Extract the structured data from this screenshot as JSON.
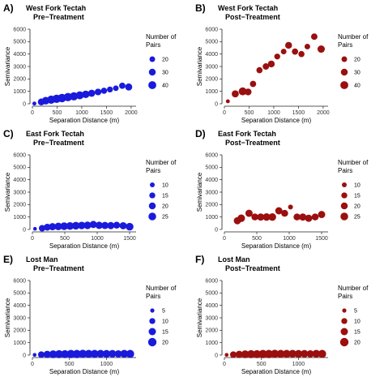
{
  "figure": {
    "legend_title_lines": [
      "Number of",
      "Pairs"
    ]
  },
  "chart_data": [
    {
      "type": "scatter",
      "panel": "A)",
      "title_lines": [
        "West Fork Tectah",
        "Pre−Treatment"
      ],
      "xlabel": "Separation Distance (m)",
      "ylabel": "Semivariance",
      "xlim": [
        0,
        2100
      ],
      "ylim": [
        0,
        6000
      ],
      "xticks": [
        0,
        500,
        1000,
        1500,
        2000
      ],
      "yticks": [
        0,
        1000,
        2000,
        3000,
        4000,
        5000,
        6000
      ],
      "color": "#1a1adc",
      "size_range": [
        10,
        45
      ],
      "legend": {
        "values": [
          20,
          30,
          40
        ]
      },
      "points": [
        {
          "x": 40,
          "y": 20,
          "n": 10
        },
        {
          "x": 180,
          "y": 150,
          "n": 30
        },
        {
          "x": 270,
          "y": 250,
          "n": 37
        },
        {
          "x": 380,
          "y": 330,
          "n": 42
        },
        {
          "x": 490,
          "y": 400,
          "n": 44
        },
        {
          "x": 600,
          "y": 460,
          "n": 45
        },
        {
          "x": 720,
          "y": 540,
          "n": 44
        },
        {
          "x": 840,
          "y": 600,
          "n": 43
        },
        {
          "x": 960,
          "y": 680,
          "n": 40
        },
        {
          "x": 1080,
          "y": 760,
          "n": 36
        },
        {
          "x": 1200,
          "y": 850,
          "n": 32
        },
        {
          "x": 1330,
          "y": 950,
          "n": 28
        },
        {
          "x": 1450,
          "y": 1050,
          "n": 24
        },
        {
          "x": 1570,
          "y": 1150,
          "n": 22
        },
        {
          "x": 1690,
          "y": 1250,
          "n": 20
        },
        {
          "x": 1820,
          "y": 1450,
          "n": 25
        },
        {
          "x": 1950,
          "y": 1350,
          "n": 32
        }
      ]
    },
    {
      "type": "scatter",
      "panel": "B)",
      "title_lines": [
        "West Fork Tectah",
        "Post−Treatment"
      ],
      "xlabel": "Separation Distance (m)",
      "ylabel": "Semivariance",
      "xlim": [
        0,
        2100
      ],
      "ylim": [
        0,
        6000
      ],
      "xticks": [
        0,
        500,
        1000,
        1500,
        2000
      ],
      "yticks": [
        0,
        1000,
        2000,
        3000,
        4000,
        5000,
        6000
      ],
      "color": "#9b0f0f",
      "size_range": [
        10,
        45
      ],
      "legend": {
        "values": [
          20,
          30,
          40
        ]
      },
      "points": [
        {
          "x": 70,
          "y": 200,
          "n": 10
        },
        {
          "x": 220,
          "y": 800,
          "n": 32
        },
        {
          "x": 370,
          "y": 1000,
          "n": 40
        },
        {
          "x": 480,
          "y": 950,
          "n": 30
        },
        {
          "x": 580,
          "y": 1600,
          "n": 25
        },
        {
          "x": 710,
          "y": 2700,
          "n": 24
        },
        {
          "x": 840,
          "y": 3000,
          "n": 26
        },
        {
          "x": 950,
          "y": 3200,
          "n": 30
        },
        {
          "x": 1070,
          "y": 3800,
          "n": 22
        },
        {
          "x": 1200,
          "y": 4200,
          "n": 20
        },
        {
          "x": 1300,
          "y": 4700,
          "n": 30
        },
        {
          "x": 1430,
          "y": 4200,
          "n": 25
        },
        {
          "x": 1560,
          "y": 4000,
          "n": 24
        },
        {
          "x": 1680,
          "y": 4600,
          "n": 20
        },
        {
          "x": 1820,
          "y": 5400,
          "n": 26
        },
        {
          "x": 1960,
          "y": 4400,
          "n": 34
        }
      ]
    },
    {
      "type": "scatter",
      "panel": "C)",
      "title_lines": [
        "East Fork Tectah",
        "Pre−Treatment"
      ],
      "xlabel": "Separation Distance (m)",
      "ylabel": "Semivariance",
      "xlim": [
        0,
        1600
      ],
      "ylim": [
        0,
        6000
      ],
      "xticks": [
        0,
        500,
        1000,
        1500
      ],
      "yticks": [
        0,
        1000,
        2000,
        3000,
        4000,
        5000,
        6000
      ],
      "color": "#1a1adc",
      "size_range": [
        5,
        30
      ],
      "legend": {
        "values": [
          10,
          15,
          20,
          25
        ]
      },
      "points": [
        {
          "x": 40,
          "y": 50,
          "n": 6
        },
        {
          "x": 150,
          "y": 100,
          "n": 18
        },
        {
          "x": 230,
          "y": 180,
          "n": 20
        },
        {
          "x": 310,
          "y": 220,
          "n": 22
        },
        {
          "x": 400,
          "y": 240,
          "n": 24
        },
        {
          "x": 490,
          "y": 260,
          "n": 25
        },
        {
          "x": 580,
          "y": 280,
          "n": 25
        },
        {
          "x": 670,
          "y": 300,
          "n": 25
        },
        {
          "x": 760,
          "y": 320,
          "n": 24
        },
        {
          "x": 850,
          "y": 330,
          "n": 24
        },
        {
          "x": 940,
          "y": 400,
          "n": 22
        },
        {
          "x": 1030,
          "y": 330,
          "n": 23
        },
        {
          "x": 1120,
          "y": 320,
          "n": 22
        },
        {
          "x": 1210,
          "y": 310,
          "n": 22
        },
        {
          "x": 1300,
          "y": 340,
          "n": 20
        },
        {
          "x": 1400,
          "y": 300,
          "n": 22
        },
        {
          "x": 1500,
          "y": 220,
          "n": 25
        }
      ]
    },
    {
      "type": "scatter",
      "panel": "D)",
      "title_lines": [
        "East Fork Tectah",
        "Post−Treatment"
      ],
      "xlabel": "Separation Distance (m)",
      "ylabel": "Semivariance",
      "xlim": [
        0,
        1600
      ],
      "ylim": [
        0,
        6000
      ],
      "xticks": [
        0,
        500,
        1000,
        1500
      ],
      "yticks": [
        0,
        1000,
        2000,
        3000,
        4000,
        5000,
        6000
      ],
      "color": "#9b0f0f",
      "size_range": [
        5,
        30
      ],
      "legend": {
        "values": [
          10,
          15,
          20,
          25
        ]
      },
      "points": [
        {
          "x": 200,
          "y": 700,
          "n": 22
        },
        {
          "x": 260,
          "y": 900,
          "n": 24
        },
        {
          "x": 380,
          "y": 1300,
          "n": 22
        },
        {
          "x": 470,
          "y": 1000,
          "n": 20
        },
        {
          "x": 560,
          "y": 1000,
          "n": 22
        },
        {
          "x": 650,
          "y": 1000,
          "n": 24
        },
        {
          "x": 740,
          "y": 1000,
          "n": 24
        },
        {
          "x": 840,
          "y": 1500,
          "n": 22
        },
        {
          "x": 930,
          "y": 1300,
          "n": 20
        },
        {
          "x": 1020,
          "y": 1800,
          "n": 10
        },
        {
          "x": 1120,
          "y": 1000,
          "n": 20
        },
        {
          "x": 1210,
          "y": 1000,
          "n": 22
        },
        {
          "x": 1300,
          "y": 900,
          "n": 22
        },
        {
          "x": 1400,
          "y": 1000,
          "n": 20
        },
        {
          "x": 1500,
          "y": 1200,
          "n": 22
        }
      ]
    },
    {
      "type": "scatter",
      "panel": "E)",
      "title_lines": [
        "Lost Man",
        "Pre−Treatment"
      ],
      "xlabel": "Separation Distance (m)",
      "ylabel": "Semivariance",
      "xlim": [
        0,
        1400
      ],
      "ylim": [
        0,
        6000
      ],
      "xticks": [
        0,
        500,
        1000
      ],
      "yticks": [
        0,
        1000,
        2000,
        3000,
        4000,
        5000,
        6000
      ],
      "color": "#1a1adc",
      "size_range": [
        3,
        20
      ],
      "legend": {
        "values": [
          5,
          10,
          15,
          20
        ]
      },
      "points": [
        {
          "x": 30,
          "y": 20,
          "n": 4
        },
        {
          "x": 120,
          "y": 40,
          "n": 12
        },
        {
          "x": 200,
          "y": 60,
          "n": 15
        },
        {
          "x": 280,
          "y": 70,
          "n": 17
        },
        {
          "x": 360,
          "y": 80,
          "n": 18
        },
        {
          "x": 440,
          "y": 80,
          "n": 18
        },
        {
          "x": 520,
          "y": 90,
          "n": 19
        },
        {
          "x": 600,
          "y": 90,
          "n": 19
        },
        {
          "x": 680,
          "y": 100,
          "n": 19
        },
        {
          "x": 760,
          "y": 100,
          "n": 18
        },
        {
          "x": 840,
          "y": 100,
          "n": 18
        },
        {
          "x": 920,
          "y": 110,
          "n": 17
        },
        {
          "x": 1000,
          "y": 100,
          "n": 17
        },
        {
          "x": 1080,
          "y": 110,
          "n": 16
        },
        {
          "x": 1160,
          "y": 100,
          "n": 15
        },
        {
          "x": 1240,
          "y": 110,
          "n": 17
        },
        {
          "x": 1320,
          "y": 100,
          "n": 18
        }
      ]
    },
    {
      "type": "scatter",
      "panel": "F)",
      "title_lines": [
        "Lost Man",
        "Post−Treatment"
      ],
      "xlabel": "Separation Distance (m)",
      "ylabel": "Semivariance",
      "xlim": [
        0,
        1400
      ],
      "ylim": [
        0,
        6000
      ],
      "xticks": [
        0,
        500,
        1000
      ],
      "yticks": [
        0,
        1000,
        2000,
        3000,
        4000,
        5000,
        6000
      ],
      "color": "#9b0f0f",
      "size_range": [
        3,
        20
      ],
      "legend": {
        "values": [
          5,
          10,
          15,
          20
        ]
      },
      "points": [
        {
          "x": 30,
          "y": 20,
          "n": 4
        },
        {
          "x": 120,
          "y": 40,
          "n": 12
        },
        {
          "x": 200,
          "y": 60,
          "n": 15
        },
        {
          "x": 280,
          "y": 70,
          "n": 17
        },
        {
          "x": 360,
          "y": 80,
          "n": 18
        },
        {
          "x": 440,
          "y": 80,
          "n": 18
        },
        {
          "x": 520,
          "y": 90,
          "n": 19
        },
        {
          "x": 600,
          "y": 90,
          "n": 19
        },
        {
          "x": 680,
          "y": 100,
          "n": 19
        },
        {
          "x": 760,
          "y": 100,
          "n": 18
        },
        {
          "x": 840,
          "y": 100,
          "n": 18
        },
        {
          "x": 920,
          "y": 110,
          "n": 17
        },
        {
          "x": 1000,
          "y": 100,
          "n": 17
        },
        {
          "x": 1080,
          "y": 110,
          "n": 16
        },
        {
          "x": 1160,
          "y": 100,
          "n": 15
        },
        {
          "x": 1240,
          "y": 110,
          "n": 17
        },
        {
          "x": 1320,
          "y": 100,
          "n": 18
        }
      ]
    }
  ]
}
